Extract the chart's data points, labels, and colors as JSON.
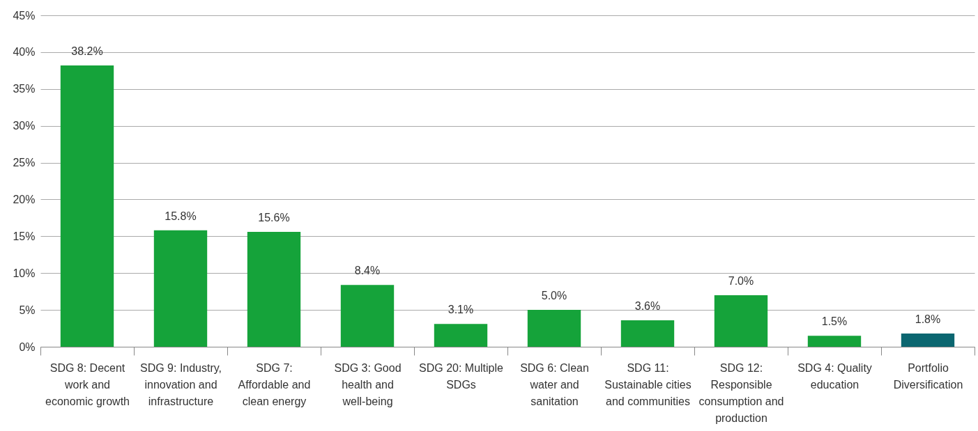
{
  "chart_data": {
    "type": "bar",
    "categories": [
      "SDG 8: Decent work and economic growth",
      "SDG 9: Industry, innovation and infrastructure",
      "SDG 7: Affordable and clean energy",
      "SDG 3: Good health and well-being",
      "SDG 20: Multiple SDGs",
      "SDG 6: Clean water and sanitation",
      "SDG 11: Sustainable cities and communities",
      "SDG 12: Responsible consumption and production",
      "SDG 4: Quality education",
      "Portfolio Diversification"
    ],
    "values": [
      38.2,
      15.8,
      15.6,
      8.4,
      3.1,
      5.0,
      3.6,
      7.0,
      1.5,
      1.8
    ],
    "colors": [
      "#15a33a",
      "#15a33a",
      "#15a33a",
      "#15a33a",
      "#15a33a",
      "#15a33a",
      "#15a33a",
      "#15a33a",
      "#15a33a",
      "#0b6670"
    ],
    "value_labels": [
      "38.2%",
      "15.8%",
      "15.6%",
      "8.4%",
      "3.1%",
      "5.0%",
      "3.6%",
      "7.0%",
      "1.5%",
      "1.8%"
    ],
    "ylim": [
      0,
      45
    ],
    "yticks": [
      {
        "value": 0,
        "label": "0%"
      },
      {
        "value": 5,
        "label": "5%"
      },
      {
        "value": 10,
        "label": "10%"
      },
      {
        "value": 15,
        "label": "15%"
      },
      {
        "value": 20,
        "label": "20%"
      },
      {
        "value": 25,
        "label": "25%"
      },
      {
        "value": 30,
        "label": "30%"
      },
      {
        "value": 35,
        "label": "35%"
      },
      {
        "value": 40,
        "label": "40%"
      },
      {
        "value": 45,
        "label": "45%"
      }
    ],
    "grid": "y",
    "legend": false
  }
}
